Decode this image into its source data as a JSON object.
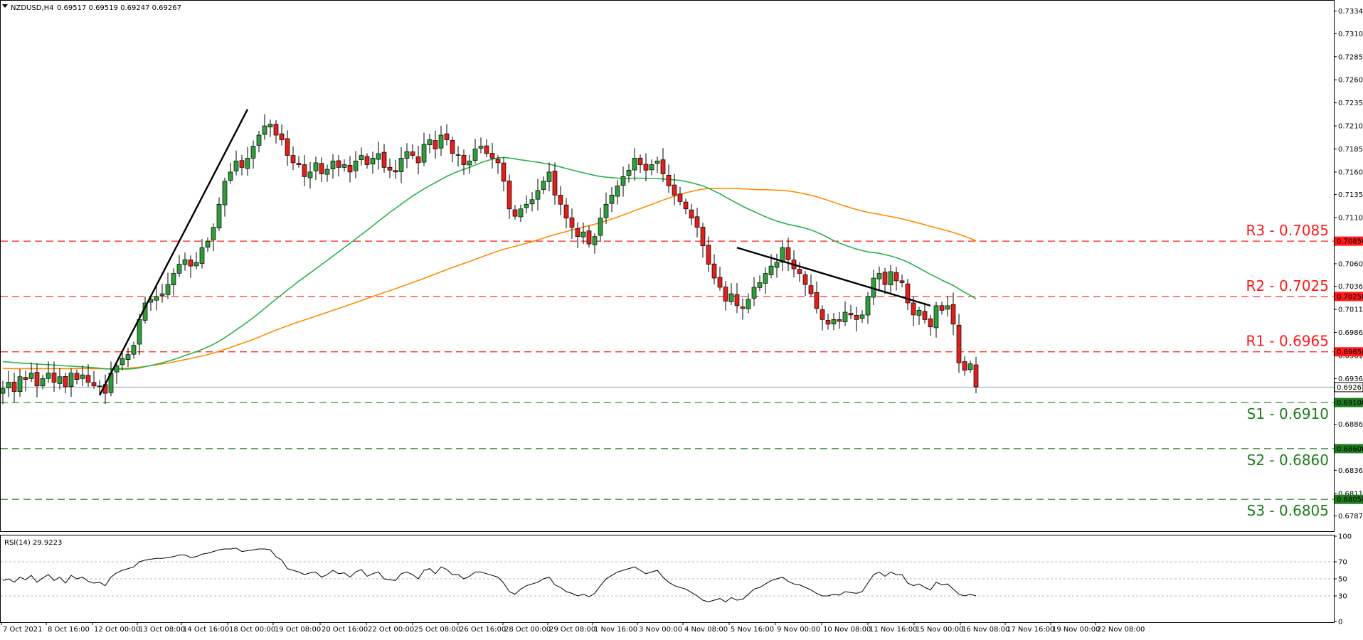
{
  "header": {
    "symbol": "NZDUSD,H4",
    "ohlc": "0.69517 0.69519 0.69247 0.69267"
  },
  "colors": {
    "bull": "#2e9e3a",
    "bear": "#e0201b",
    "ma_fast": "#2bb24c",
    "ma_slow": "#ff8c00",
    "resistance": "#ff1a1a",
    "support": "#1e7d1e",
    "current": "#8aa2b8",
    "trendline": "#000000",
    "rsi": "#000000"
  },
  "chart_data": [
    {
      "type": "candlestick",
      "title": "NZDUSD,H4",
      "ylim": [
        0.6772,
        0.7345
      ],
      "y_ticks": [
        "0.73345",
        "0.73100",
        "0.72850",
        "0.72600",
        "0.72350",
        "0.72100",
        "0.71850",
        "0.71600",
        "0.71355",
        "0.71105",
        "0.70850",
        "0.70605",
        "0.70360",
        "0.70110",
        "0.69860",
        "0.69610",
        "0.69360",
        "0.69110",
        "0.68865",
        "0.68615",
        "0.68365",
        "0.68115",
        "0.67870"
      ],
      "x_labels": [
        "7 Oct 2021",
        "8 Oct 16:00",
        "12 Oct 00:00",
        "13 Oct 08:00",
        "14 Oct 16:00",
        "18 Oct 00:00",
        "19 Oct 08:00",
        "20 Oct 16:00",
        "22 Oct 00:00",
        "25 Oct 08:00",
        "26 Oct 16:00",
        "28 Oct 00:00",
        "29 Oct 08:00",
        "1 Nov 16:00",
        "3 Nov 00:00",
        "4 Nov 08:00",
        "5 Nov 16:00",
        "9 Nov 00:00",
        "10 Nov 08:00",
        "11 Nov 16:00",
        "15 Nov 00:00",
        "16 Nov 08:00",
        "17 Nov 16:00",
        "19 Nov 00:00",
        "22 Nov 08:00"
      ],
      "closes": [
        0.6925,
        0.6932,
        0.6922,
        0.6938,
        0.6935,
        0.6942,
        0.6928,
        0.6936,
        0.6942,
        0.6932,
        0.6938,
        0.6927,
        0.6942,
        0.6935,
        0.694,
        0.6932,
        0.6928,
        0.6928,
        0.692,
        0.6942,
        0.695,
        0.6958,
        0.6962,
        0.6972,
        0.7,
        0.7018,
        0.7022,
        0.7025,
        0.7028,
        0.7038,
        0.705,
        0.706,
        0.7065,
        0.7058,
        0.7062,
        0.7078,
        0.7085,
        0.71,
        0.7125,
        0.715,
        0.716,
        0.7172,
        0.7165,
        0.7175,
        0.7188,
        0.72,
        0.721,
        0.7212,
        0.72,
        0.7195,
        0.7178,
        0.717,
        0.7168,
        0.7155,
        0.716,
        0.717,
        0.7158,
        0.7163,
        0.7172,
        0.7165,
        0.7168,
        0.716,
        0.7172,
        0.7178,
        0.7168,
        0.7175,
        0.718,
        0.7165,
        0.7162,
        0.716,
        0.7175,
        0.7182,
        0.7178,
        0.717,
        0.719,
        0.7195,
        0.7185,
        0.72,
        0.7195,
        0.718,
        0.7178,
        0.7168,
        0.7172,
        0.7185,
        0.7188,
        0.718,
        0.7175,
        0.717,
        0.715,
        0.712,
        0.7112,
        0.712,
        0.7125,
        0.713,
        0.714,
        0.715,
        0.716,
        0.7135,
        0.7125,
        0.711,
        0.71,
        0.709,
        0.7095,
        0.7082,
        0.709,
        0.711,
        0.7125,
        0.7135,
        0.7145,
        0.7155,
        0.7162,
        0.7175,
        0.7168,
        0.7162,
        0.7168,
        0.7172,
        0.7158,
        0.7145,
        0.7135,
        0.7128,
        0.712,
        0.711,
        0.71,
        0.708,
        0.706,
        0.7045,
        0.7035,
        0.702,
        0.7028,
        0.7015,
        0.7012,
        0.7022,
        0.7035,
        0.704,
        0.705,
        0.7058,
        0.7062,
        0.7078,
        0.7065,
        0.7055,
        0.705,
        0.7038,
        0.7028,
        0.7012,
        0.7,
        0.6995,
        0.7,
        0.6998,
        0.7008,
        0.7005,
        0.7,
        0.7005,
        0.7025,
        0.7045,
        0.705,
        0.7038,
        0.7052,
        0.7042,
        0.704,
        0.7018,
        0.7005,
        0.701,
        0.7,
        0.6992,
        0.7015,
        0.701,
        0.7015,
        0.6995,
        0.6953,
        0.6945,
        0.6952,
        0.6927
      ],
      "series": [
        {
          "name": "",
          "kind": "moving-average-fast"
        },
        {
          "name": "",
          "kind": "moving-average-slow"
        }
      ],
      "levels": [
        {
          "label": "R3 - 0.7085",
          "price": "0.70850",
          "value": 0.7085,
          "kind": "resistance"
        },
        {
          "label": "R2 - 0.7025",
          "price": "0.70250",
          "value": 0.7025,
          "kind": "resistance"
        },
        {
          "label": "R1 - 0.6965",
          "price": "0.69650",
          "value": 0.6965,
          "kind": "resistance"
        },
        {
          "label": "S1 - 0.6910",
          "price": "0.69100",
          "value": 0.691,
          "kind": "support"
        },
        {
          "label": "S2 - 0.6860",
          "price": "0.68600",
          "value": 0.686,
          "kind": "support"
        },
        {
          "label": "S3 - 0.6805",
          "price": "0.68050",
          "value": 0.6805,
          "kind": "support"
        }
      ],
      "current_price": {
        "label": "0.69267",
        "value": 0.69267
      },
      "trendlines": [
        {
          "name": "uptrend",
          "from": {
            "bar": 17,
            "value": 0.6918
          },
          "to": {
            "bar": 43,
            "value": 0.7228
          }
        },
        {
          "name": "downtrend",
          "from": {
            "bar": 129,
            "value": 0.7078
          },
          "to": {
            "bar": 163,
            "value": 0.7015
          }
        }
      ]
    },
    {
      "type": "line",
      "title": "RSI(14) 29.9223",
      "ylim": [
        0,
        100
      ],
      "y_ticks": [
        "100",
        "70",
        "50",
        "30",
        "0"
      ],
      "levels": [
        70,
        50,
        30
      ],
      "values": [
        48,
        50,
        46,
        52,
        49,
        54,
        46,
        51,
        55,
        48,
        52,
        45,
        54,
        50,
        52,
        47,
        45,
        46,
        42,
        52,
        57,
        60,
        62,
        64,
        70,
        72,
        73,
        74,
        74,
        75,
        76,
        78,
        78,
        75,
        76,
        79,
        80,
        82,
        84,
        85,
        85,
        86,
        82,
        83,
        84,
        85,
        85,
        84,
        76,
        72,
        62,
        60,
        58,
        55,
        57,
        58,
        52,
        55,
        60,
        56,
        57,
        52,
        58,
        61,
        53,
        56,
        58,
        50,
        49,
        48,
        56,
        58,
        55,
        50,
        60,
        62,
        56,
        64,
        61,
        55,
        55,
        50,
        53,
        58,
        58,
        56,
        54,
        52,
        45,
        35,
        32,
        38,
        42,
        44,
        46,
        50,
        52,
        43,
        40,
        35,
        33,
        30,
        32,
        29,
        33,
        42,
        50,
        54,
        58,
        60,
        62,
        64,
        60,
        56,
        58,
        60,
        52,
        46,
        42,
        40,
        38,
        34,
        30,
        25,
        23,
        25,
        27,
        23,
        28,
        25,
        26,
        32,
        38,
        40,
        44,
        48,
        50,
        52,
        47,
        44,
        43,
        40,
        37,
        33,
        30,
        30,
        32,
        31,
        35,
        34,
        33,
        35,
        45,
        55,
        58,
        53,
        58,
        55,
        55,
        45,
        42,
        44,
        40,
        37,
        46,
        43,
        44,
        38,
        32,
        30,
        32,
        30
      ]
    }
  ]
}
